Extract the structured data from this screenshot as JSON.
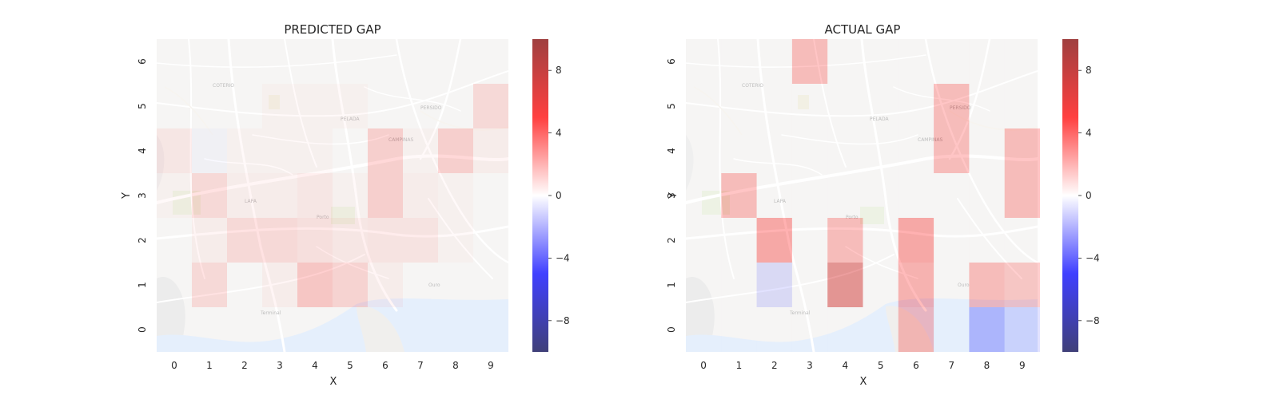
{
  "chart_data": [
    {
      "type": "heatmap",
      "title": "PREDICTED GAP",
      "xlabel": "X",
      "ylabel": "Y",
      "x_categories": [
        "0",
        "1",
        "2",
        "3",
        "4",
        "5",
        "6",
        "7",
        "8",
        "9"
      ],
      "y_categories": [
        "0",
        "1",
        "2",
        "3",
        "4",
        "5",
        "6"
      ],
      "values": [
        [
          0.0,
          0.0,
          0.0,
          0.0,
          0.0,
          0.0,
          0.0,
          0.0,
          0.0,
          0.0
        ],
        [
          0.0,
          1.5,
          0.0,
          0.5,
          2.5,
          1.8,
          0.5,
          0.0,
          0.0,
          0.0
        ],
        [
          0.0,
          0.5,
          1.5,
          1.5,
          1.2,
          0.8,
          1.0,
          1.0,
          0.3,
          0.0
        ],
        [
          0.3,
          1.5,
          0.5,
          0.5,
          0.8,
          0.3,
          2.0,
          0.5,
          0.3,
          0.0
        ],
        [
          0.8,
          -0.3,
          0.3,
          0.3,
          0.3,
          0.0,
          2.0,
          0.3,
          2.0,
          0.5
        ],
        [
          0.0,
          0.0,
          0.0,
          0.3,
          0.3,
          0.3,
          0.0,
          0.0,
          0.0,
          1.5
        ],
        [
          0.0,
          0.0,
          0.0,
          0.0,
          0.0,
          0.0,
          0.0,
          0.0,
          0.0,
          0.0
        ]
      ],
      "colorbar": {
        "min": -10,
        "max": 10,
        "ticks": [
          -8,
          -4,
          0,
          4,
          8
        ],
        "tick_labels": [
          "−8",
          "−4",
          "0",
          "4",
          "8"
        ]
      },
      "colormap": "seismic",
      "grid": false
    },
    {
      "type": "heatmap",
      "title": "ACTUAL GAP",
      "xlabel": "X",
      "ylabel": "Y",
      "x_categories": [
        "0",
        "1",
        "2",
        "3",
        "4",
        "5",
        "6",
        "7",
        "8",
        "9"
      ],
      "y_categories": [
        "0",
        "1",
        "2",
        "3",
        "4",
        "5",
        "6"
      ],
      "values": [
        [
          0.0,
          0.0,
          0.0,
          0.0,
          0.0,
          0.0,
          3.0,
          0.0,
          -3.0,
          -1.5
        ],
        [
          0.0,
          0.0,
          -1.5,
          0.0,
          7.0,
          0.0,
          3.5,
          0.0,
          3.0,
          2.5
        ],
        [
          0.0,
          0.0,
          4.0,
          0.0,
          3.0,
          0.0,
          4.0,
          0.0,
          0.0,
          0.0
        ],
        [
          0.0,
          3.0,
          0.0,
          0.0,
          0.0,
          0.0,
          0.0,
          0.0,
          0.0,
          3.0
        ],
        [
          0.0,
          0.0,
          0.0,
          0.0,
          0.0,
          0.0,
          0.0,
          3.0,
          0.0,
          3.0
        ],
        [
          0.0,
          0.0,
          0.0,
          0.0,
          0.0,
          0.0,
          0.0,
          3.0,
          0.0,
          0.0
        ],
        [
          0.0,
          0.0,
          0.0,
          3.0,
          0.0,
          0.0,
          0.0,
          0.0,
          0.0,
          0.0
        ]
      ],
      "colorbar": {
        "min": -10,
        "max": 10,
        "ticks": [
          -8,
          -4,
          0,
          4,
          8
        ],
        "tick_labels": [
          "−8",
          "−4",
          "0",
          "4",
          "8"
        ]
      },
      "colormap": "seismic",
      "grid": false
    }
  ]
}
